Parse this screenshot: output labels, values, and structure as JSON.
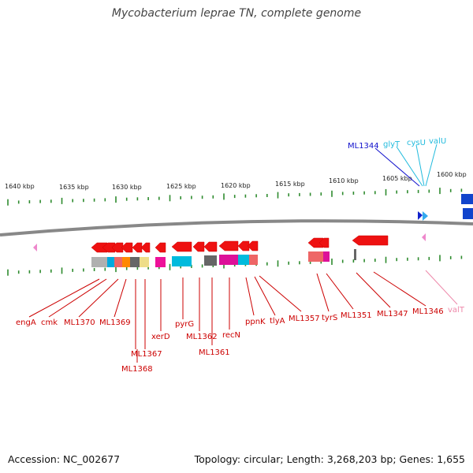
{
  "title": "Mycobacterium leprae TN, complete genome",
  "footer": {
    "accession": "Accession: NC_002677",
    "stats": "Topology: circular; Length: 3,268,203 bp; Genes: 1,655"
  },
  "colors": {
    "backbone": "#888888",
    "tick": "#2e8b2e",
    "gene_forward": "#ee1111",
    "label_red": "#cc0000",
    "label_blue": "#1111cc",
    "label_cyan": "#22bbdd",
    "label_pink": "#ee88aa",
    "trna_pink": "#ee88cc",
    "cog_colors": [
      "#b0b0b0",
      "#00aadd",
      "#ee6666",
      "#ff8800",
      "#666666",
      "#eedd88",
      "#ee1199",
      "#00bbdd",
      "#dd1199"
    ]
  },
  "ruler": {
    "labels": [
      {
        "text": "1640 kbp"
      },
      {
        "text": "1635 kbp"
      },
      {
        "text": "1630 kbp"
      },
      {
        "text": "1625 kbp"
      },
      {
        "text": "1620 kbp"
      },
      {
        "text": "1615 kbp"
      },
      {
        "text": "1610 kbp"
      },
      {
        "text": "1605 kbp"
      },
      {
        "text": "1600 kbp"
      }
    ]
  },
  "genes_bottom": [
    {
      "name": "engA",
      "color": "label_red"
    },
    {
      "name": "cmk",
      "color": "label_red"
    },
    {
      "name": "ML1370",
      "color": "label_red"
    },
    {
      "name": "ML1369",
      "color": "label_red"
    },
    {
      "name": "ML1367",
      "color": "label_red"
    },
    {
      "name": "ML1368",
      "color": "label_red"
    },
    {
      "name": "xerD",
      "color": "label_red"
    },
    {
      "name": "pyrG",
      "color": "label_red"
    },
    {
      "name": "ML1362",
      "color": "label_red"
    },
    {
      "name": "ML1361",
      "color": "label_red"
    },
    {
      "name": "recN",
      "color": "label_red"
    },
    {
      "name": "ppnK",
      "color": "label_red"
    },
    {
      "name": "tlyA",
      "color": "label_red"
    },
    {
      "name": "ML1357",
      "color": "label_red"
    },
    {
      "name": "tyrS",
      "color": "label_red"
    },
    {
      "name": "ML1351",
      "color": "label_red"
    },
    {
      "name": "ML1347",
      "color": "label_red"
    },
    {
      "name": "ML1346",
      "color": "label_red"
    },
    {
      "name": "valT",
      "color": "label_pink"
    }
  ],
  "genes_top": [
    {
      "name": "ML1344",
      "color": "label_blue"
    },
    {
      "name": "glyT",
      "color": "label_cyan"
    },
    {
      "name": "cysU",
      "color": "label_cyan"
    },
    {
      "name": "valU",
      "color": "label_cyan"
    }
  ]
}
